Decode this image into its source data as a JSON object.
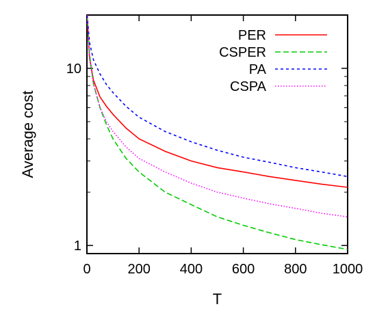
{
  "chart_data": {
    "type": "line",
    "title": "",
    "xlabel": "T",
    "ylabel": "Average cost",
    "xlim": [
      0,
      1000
    ],
    "ylim": [
      0.9,
      20
    ],
    "yscale": "log",
    "grid": false,
    "legend_position": "top-right",
    "x_ticks": [
      0,
      200,
      400,
      600,
      800,
      1000
    ],
    "y_ticks": [
      1,
      10
    ],
    "series": [
      {
        "name": "PER",
        "color": "#ff0000",
        "dash": "solid",
        "x": [
          1,
          10,
          25,
          50,
          75,
          100,
          150,
          200,
          300,
          400,
          500,
          600,
          700,
          800,
          900,
          1000
        ],
        "y": [
          20,
          11.5,
          8.6,
          6.9,
          6.1,
          5.5,
          4.6,
          4.0,
          3.4,
          3.0,
          2.75,
          2.6,
          2.45,
          2.33,
          2.22,
          2.13
        ]
      },
      {
        "name": "CSPER",
        "color": "#00cc00",
        "dash": "long",
        "x": [
          1,
          10,
          25,
          50,
          75,
          100,
          150,
          200,
          300,
          400,
          500,
          600,
          700,
          800,
          900,
          1000
        ],
        "y": [
          20,
          12,
          8.2,
          6.0,
          4.8,
          4.0,
          3.1,
          2.6,
          2.0,
          1.7,
          1.45,
          1.3,
          1.18,
          1.08,
          1.01,
          0.95
        ]
      },
      {
        "name": "PA",
        "color": "#0000ff",
        "dash": "short",
        "x": [
          1,
          10,
          25,
          50,
          75,
          100,
          150,
          200,
          300,
          400,
          500,
          600,
          700,
          800,
          900,
          1000
        ],
        "y": [
          20,
          14,
          11.2,
          9.3,
          8.1,
          7.3,
          6.1,
          5.3,
          4.4,
          3.85,
          3.45,
          3.15,
          2.95,
          2.75,
          2.6,
          2.45
        ]
      },
      {
        "name": "CSPA",
        "color": "#ff00ff",
        "dash": "dotted",
        "x": [
          1,
          10,
          25,
          50,
          75,
          100,
          150,
          200,
          300,
          400,
          500,
          600,
          700,
          800,
          900,
          1000
        ],
        "y": [
          20,
          11.5,
          8.2,
          6.0,
          5.0,
          4.4,
          3.6,
          3.1,
          2.6,
          2.25,
          2.0,
          1.85,
          1.72,
          1.62,
          1.52,
          1.45
        ]
      }
    ]
  }
}
